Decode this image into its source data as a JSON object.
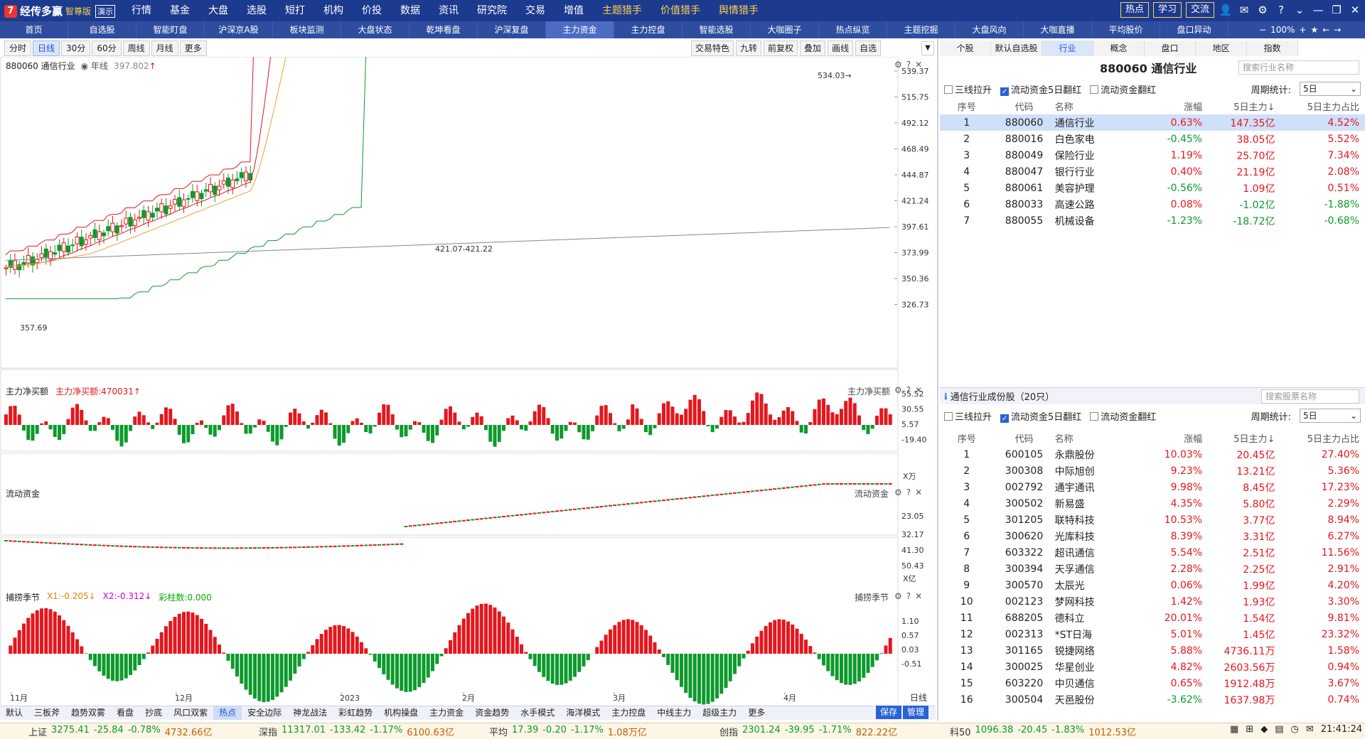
{
  "app": {
    "logo_mark": "7",
    "name": "经传多赢",
    "edition": "智尊版",
    "demo": "演示"
  },
  "main_menu": [
    "行情",
    "基金",
    "大盘",
    "选股",
    "短打",
    "机构",
    "价投",
    "数据",
    "资讯",
    "研究院",
    "交易",
    "增值",
    "主题猎手",
    "价值猎手",
    "舆情猎手"
  ],
  "top_right": {
    "buttons": [
      "热点",
      "学习",
      "交流"
    ],
    "zoom": "100%",
    "clock": "21:41:24"
  },
  "nav_tabs": [
    "首页",
    "自选股",
    "智能盯盘",
    "沪深京A股",
    "板块监测",
    "大盘状态",
    "乾坤看盘",
    "沪深复盘",
    "主力资金",
    "主力控盘",
    "智能选股",
    "大咖圈子",
    "热点纵览",
    "主题挖掘",
    "大盘风向",
    "大咖直播",
    "平均股价",
    "盘口异动"
  ],
  "nav_active": "主力资金",
  "period_tabs": [
    "分时",
    "日线",
    "30分",
    "60分",
    "周线",
    "月线",
    "更多"
  ],
  "period_active": "日线",
  "chart_tools": [
    "交易特色",
    "九转",
    "前复权",
    "叠加",
    "画线",
    "自选"
  ],
  "main_chart": {
    "code_name": "880060 通信行业",
    "indicator": "年线",
    "indicator_value": "397.802",
    "y_ticks": [
      "539.37",
      "515.75",
      "492.12",
      "468.49",
      "444.87",
      "421.24",
      "397.61",
      "373.99",
      "350.36",
      "326.73"
    ],
    "annotations": {
      "high": "534.03",
      "low": "357.69",
      "mid": "421.07-421.22"
    }
  },
  "sub1": {
    "title": "主力净买额",
    "label": "主力净买额:470031",
    "right_label": "主力净买额",
    "unit": "X万",
    "y_ticks": [
      "55.52",
      "30.55",
      "5.57",
      "-19.40"
    ]
  },
  "sub2": {
    "title": "流动资金",
    "right_label": "流动资金",
    "unit": "X亿",
    "y_ticks": [
      "50.43",
      "41.30",
      "32.17",
      "23.05"
    ]
  },
  "sub3": {
    "title": "捕捞季节",
    "x1": "X1:-0.205",
    "x2": "X2:-0.312",
    "bars": "彩柱数:0.000",
    "right_label": "捕捞季节",
    "y_ticks": [
      "1.10",
      "0.57",
      "0.03",
      "-0.51"
    ]
  },
  "x_axis": [
    "11月",
    "12月",
    "2023",
    "2月",
    "3月",
    "4月"
  ],
  "x_axis_right": "日线",
  "bottom_tabs": [
    "默认",
    "三板斧",
    "趋势双雾",
    "看盘",
    "抄底",
    "风口双紫",
    "热点",
    "安全边际",
    "神龙战法",
    "彩虹趋势",
    "机构操盘",
    "主力资金",
    "资金趋势",
    "水手模式",
    "海洋模式",
    "主力控盘",
    "中线主力",
    "超级主力",
    "更多"
  ],
  "bottom_active": "热点",
  "bottom_right": [
    "保存",
    "管理"
  ],
  "right_tabs": [
    "个股",
    "默认自选股",
    "行业",
    "概念",
    "盘口",
    "地区",
    "指数"
  ],
  "right_active": "行业",
  "industry": {
    "title": "880060 通信行业",
    "search": "搜索行业名称",
    "filters": [
      "三线拉升",
      "流动资金5日翻红",
      "流动资金翻红"
    ],
    "period_label": "周期统计:",
    "period": "5日",
    "headers": [
      "序号",
      "代码",
      "名称",
      "涨幅",
      "5日主力↓",
      "5日主力占比"
    ],
    "rows": [
      [
        "1",
        "880060",
        "通信行业",
        "0.63%",
        "147.35亿",
        "4.52%"
      ],
      [
        "2",
        "880016",
        "白色家电",
        "-0.45%",
        "38.05亿",
        "5.52%"
      ],
      [
        "3",
        "880049",
        "保险行业",
        "1.19%",
        "25.70亿",
        "7.34%"
      ],
      [
        "4",
        "880047",
        "银行行业",
        "0.40%",
        "21.19亿",
        "2.08%"
      ],
      [
        "5",
        "880061",
        "美容护理",
        "-0.56%",
        "1.09亿",
        "0.51%"
      ],
      [
        "6",
        "880033",
        "高速公路",
        "0.08%",
        "-1.02亿",
        "-1.88%"
      ],
      [
        "7",
        "880055",
        "机械设备",
        "-1.23%",
        "-18.72亿",
        "-0.68%"
      ]
    ]
  },
  "constituents": {
    "title": "通信行业成份股（20只）",
    "search": "搜索股票名称",
    "filters": [
      "三线拉升",
      "流动资金5日翻红",
      "流动资金翻红"
    ],
    "period_label": "周期统计:",
    "period": "5日",
    "headers": [
      "序号",
      "代码",
      "名称",
      "涨幅",
      "5日主力↓",
      "5日主力占比"
    ],
    "rows": [
      [
        "1",
        "600105",
        "永鼎股份",
        "10.03%",
        "20.45亿",
        "27.40%"
      ],
      [
        "2",
        "300308",
        "中际旭创",
        "9.23%",
        "13.21亿",
        "5.36%"
      ],
      [
        "3",
        "002792",
        "通宇通讯",
        "9.98%",
        "8.45亿",
        "17.23%"
      ],
      [
        "4",
        "300502",
        "新易盛",
        "4.35%",
        "5.80亿",
        "2.29%"
      ],
      [
        "5",
        "301205",
        "联特科技",
        "10.53%",
        "3.77亿",
        "8.94%"
      ],
      [
        "6",
        "300620",
        "光库科技",
        "8.39%",
        "3.31亿",
        "6.27%"
      ],
      [
        "7",
        "603322",
        "超讯通信",
        "5.54%",
        "2.51亿",
        "11.56%"
      ],
      [
        "8",
        "300394",
        "天孚通信",
        "2.28%",
        "2.25亿",
        "2.91%"
      ],
      [
        "9",
        "300570",
        "太辰光",
        "0.06%",
        "1.99亿",
        "4.20%"
      ],
      [
        "10",
        "002123",
        "梦网科技",
        "1.42%",
        "1.93亿",
        "3.30%"
      ],
      [
        "11",
        "688205",
        "德科立",
        "20.01%",
        "1.54亿",
        "9.81%"
      ],
      [
        "12",
        "002313",
        "*ST日海",
        "5.01%",
        "1.45亿",
        "23.32%"
      ],
      [
        "13",
        "301165",
        "锐捷网络",
        "5.88%",
        "4736.11万",
        "1.58%"
      ],
      [
        "14",
        "300025",
        "华星创业",
        "4.82%",
        "2603.56万",
        "0.94%"
      ],
      [
        "15",
        "603220",
        "中贝通信",
        "0.65%",
        "1912.48万",
        "3.67%"
      ],
      [
        "16",
        "300504",
        "天邑股份",
        "-3.62%",
        "1637.98万",
        "0.74%"
      ]
    ]
  },
  "status": [
    {
      "name": "上证",
      "value": "3275.41",
      "chg": "-25.84",
      "pct": "-0.78%",
      "amt": "4732.66亿"
    },
    {
      "name": "深指",
      "value": "11317.01",
      "chg": "-133.42",
      "pct": "-1.17%",
      "amt": "6100.63亿"
    },
    {
      "name": "平均",
      "value": "17.39",
      "chg": "-0.20",
      "pct": "-1.17%",
      "amt": "1.08万亿"
    },
    {
      "name": "创指",
      "value": "2301.24",
      "chg": "-39.95",
      "pct": "-1.71%",
      "amt": "822.22亿"
    },
    {
      "name": "科50",
      "value": "1096.38",
      "chg": "-20.45",
      "pct": "-1.83%",
      "amt": "1012.53亿"
    }
  ],
  "colors": {
    "up": "#e5161d",
    "down": "#0d9a2c",
    "nav": "#1c3a8e",
    "accent": "#ffd24a"
  }
}
